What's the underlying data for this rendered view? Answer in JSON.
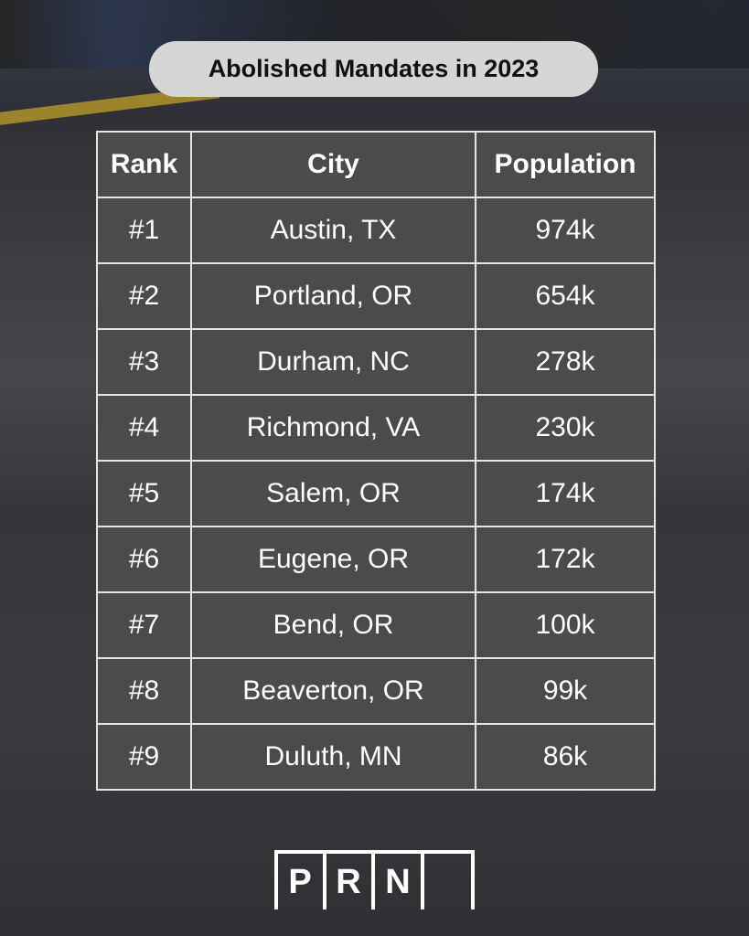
{
  "header": {
    "title": "Abolished Mandates in 2023"
  },
  "table": {
    "columns": [
      "Rank",
      "City",
      "Population"
    ],
    "rows": [
      [
        "#1",
        "Austin, TX",
        "974k"
      ],
      [
        "#2",
        "Portland, OR",
        "654k"
      ],
      [
        "#3",
        "Durham, NC",
        "278k"
      ],
      [
        "#4",
        "Richmond, VA",
        "230k"
      ],
      [
        "#5",
        "Salem, OR",
        "174k"
      ],
      [
        "#6",
        "Eugene, OR",
        "172k"
      ],
      [
        "#7",
        "Bend, OR",
        "100k"
      ],
      [
        "#8",
        "Beaverton, OR",
        "99k"
      ],
      [
        "#9",
        "Duluth, MN",
        "86k"
      ]
    ]
  },
  "logo": {
    "letters": [
      "P",
      "R",
      "N"
    ]
  }
}
